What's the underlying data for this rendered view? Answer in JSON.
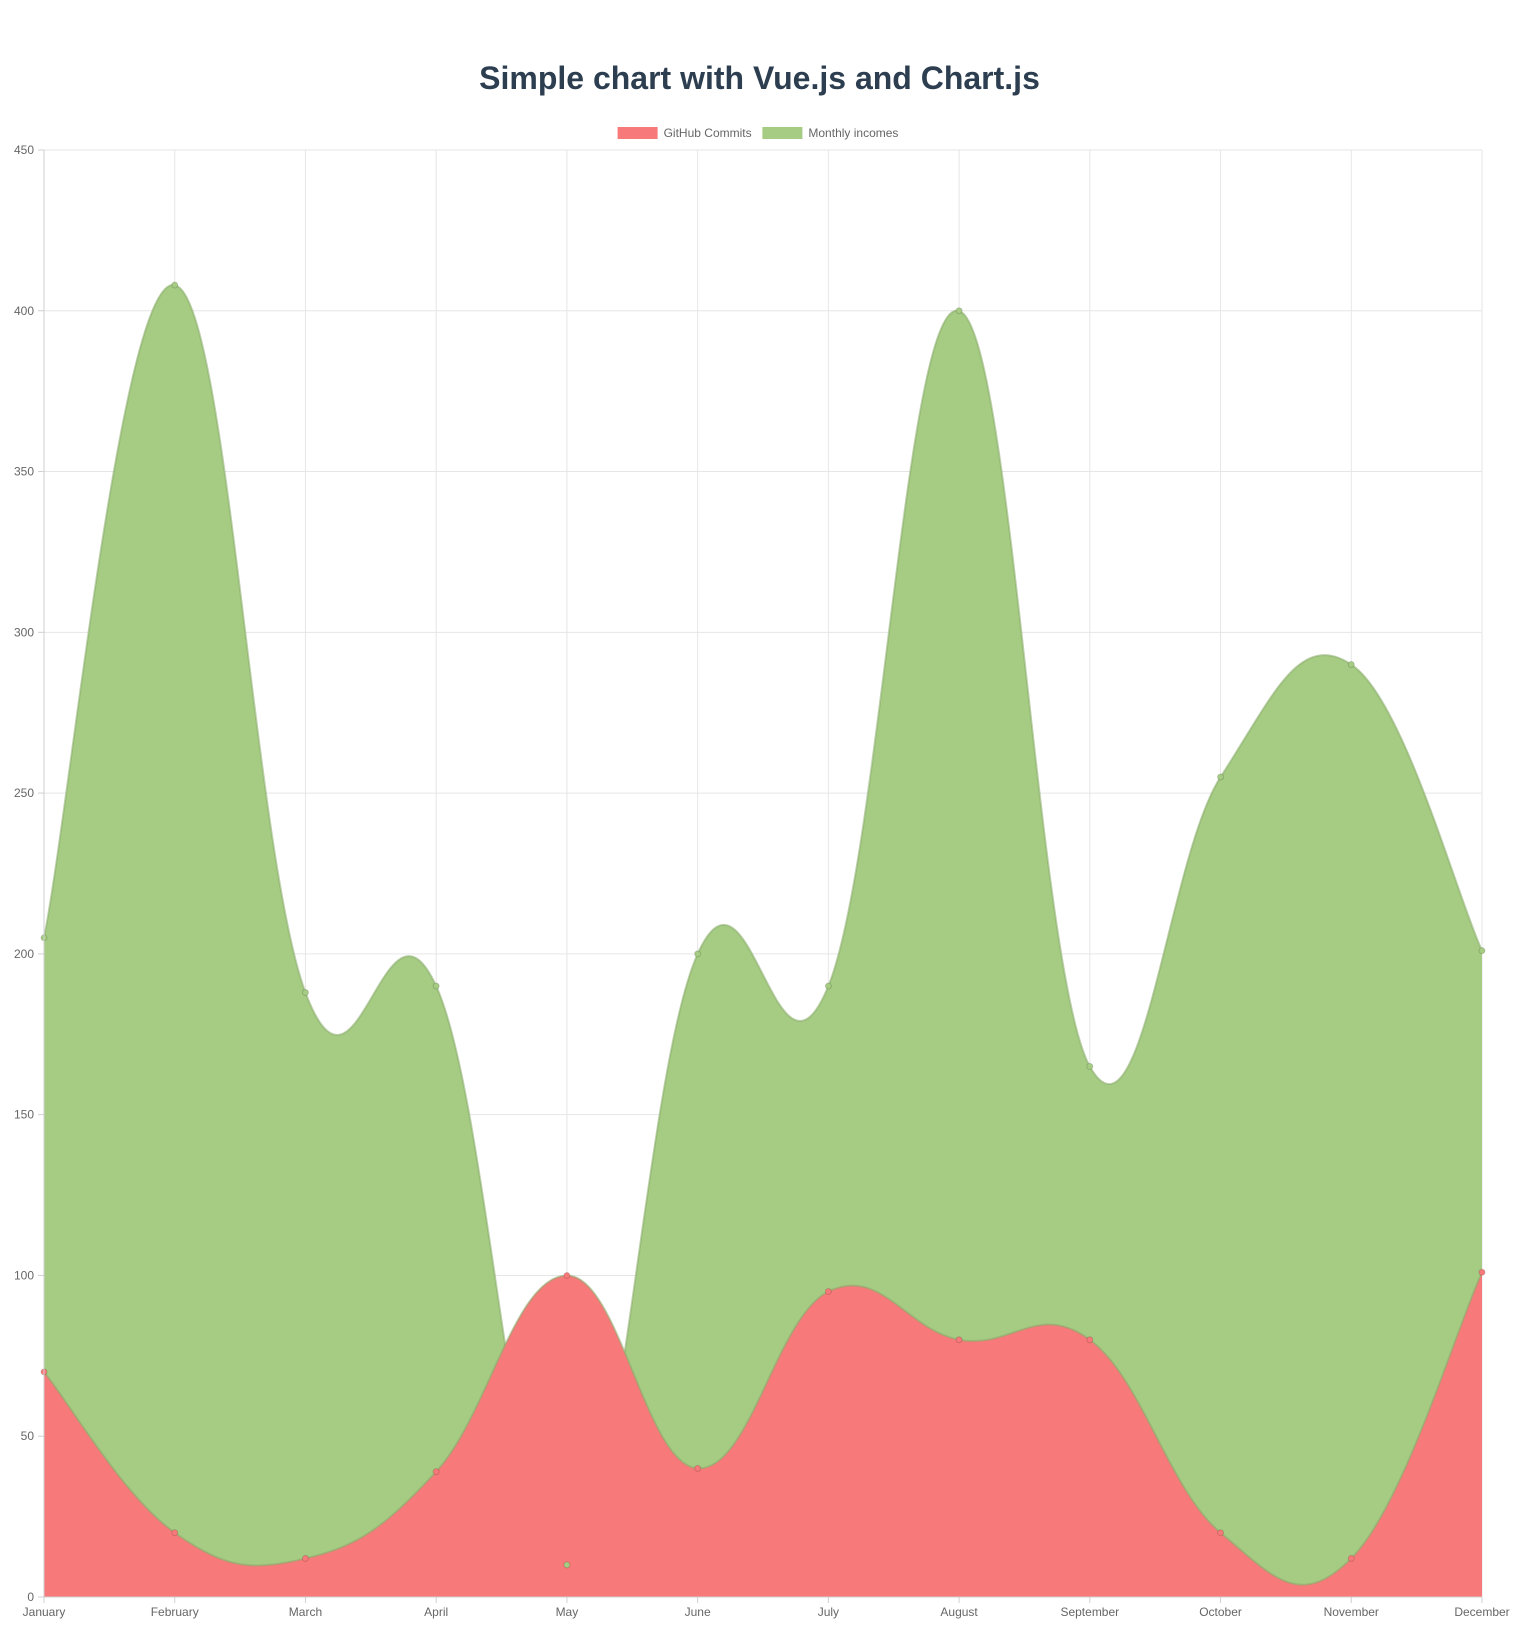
{
  "page": {
    "title": "Simple chart with Vue.js and Chart.js"
  },
  "chart_data": {
    "type": "area",
    "categories": [
      "January",
      "February",
      "March",
      "April",
      "May",
      "June",
      "July",
      "August",
      "September",
      "October",
      "November",
      "December"
    ],
    "series": [
      {
        "name": "GitHub Commits",
        "values": [
          70,
          20,
          12,
          39,
          100,
          40,
          95,
          80,
          80,
          20,
          12,
          101
        ],
        "color": "#f87979"
      },
      {
        "name": "Monthly incomes",
        "values": [
          205,
          408,
          188,
          190,
          10,
          200,
          190,
          400,
          165,
          255,
          290,
          201
        ],
        "color": "#a5cc82"
      }
    ],
    "ylim": [
      0,
      450
    ],
    "yticks": [
      0,
      50,
      100,
      150,
      200,
      250,
      300,
      350,
      400,
      450
    ],
    "grid": true,
    "legend": "top-center"
  }
}
